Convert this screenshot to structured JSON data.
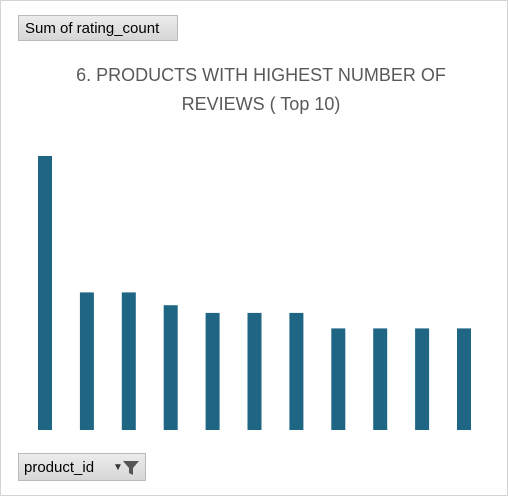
{
  "field_buttons": {
    "value_label": "Sum of rating_count",
    "axis_label": "product_id"
  },
  "colors": {
    "bar": "#1f6685"
  },
  "chart_data": {
    "type": "bar",
    "title": "6. PRODUCTS WITH HIGHEST NUMBER OF REVIEWS ( Top 10)",
    "categories": [
      "",
      "",
      "",
      "",
      "",
      "",
      "",
      "",
      "",
      "",
      ""
    ],
    "values": [
      426000,
      214000,
      214000,
      194000,
      182000,
      182000,
      182000,
      158000,
      158000,
      158000,
      158000
    ],
    "xlabel": "",
    "ylabel": "",
    "ylim": [
      0,
      426000
    ],
    "grid": false,
    "legend": "none"
  }
}
